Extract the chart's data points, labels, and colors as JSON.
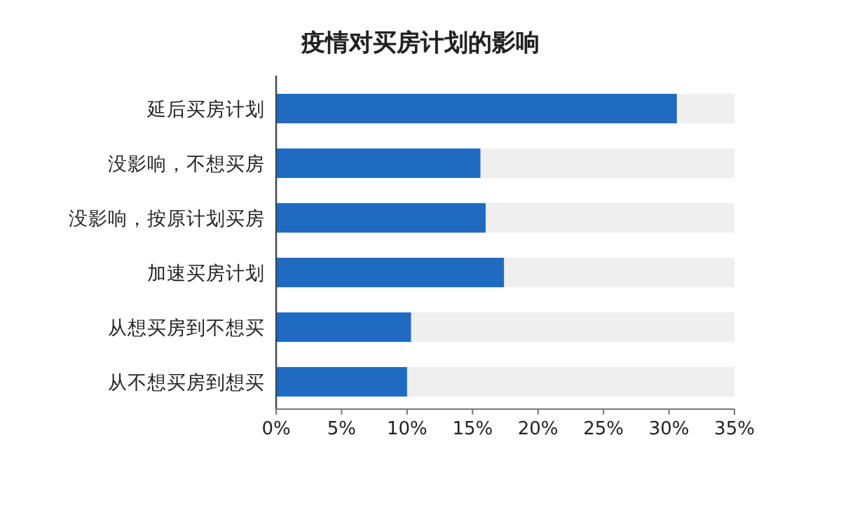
{
  "chart_data": {
    "type": "bar",
    "orientation": "horizontal",
    "title": "疫情对买房计划的影响",
    "categories": [
      "延后买房计划",
      "没影响，不想买房",
      "没影响，按原计划买房",
      "加速买房计划",
      "从想买房到不想买",
      "从不想买房到想买"
    ],
    "series": [
      {
        "color": "#1f6bc1",
        "values": [
          30.6,
          15.6,
          16.0,
          17.4,
          10.3,
          10.0
        ]
      }
    ],
    "xlim": [
      0,
      35
    ],
    "xticks": [
      {
        "value": 0,
        "label": "0%"
      },
      {
        "value": 5,
        "label": "5%"
      },
      {
        "value": 10,
        "label": "10%"
      },
      {
        "value": 15,
        "label": "15%"
      },
      {
        "value": 20,
        "label": "20%"
      },
      {
        "value": 25,
        "label": "25%"
      },
      {
        "value": 30,
        "label": "30%"
      },
      {
        "value": 35,
        "label": "35%"
      }
    ],
    "grid": false
  }
}
